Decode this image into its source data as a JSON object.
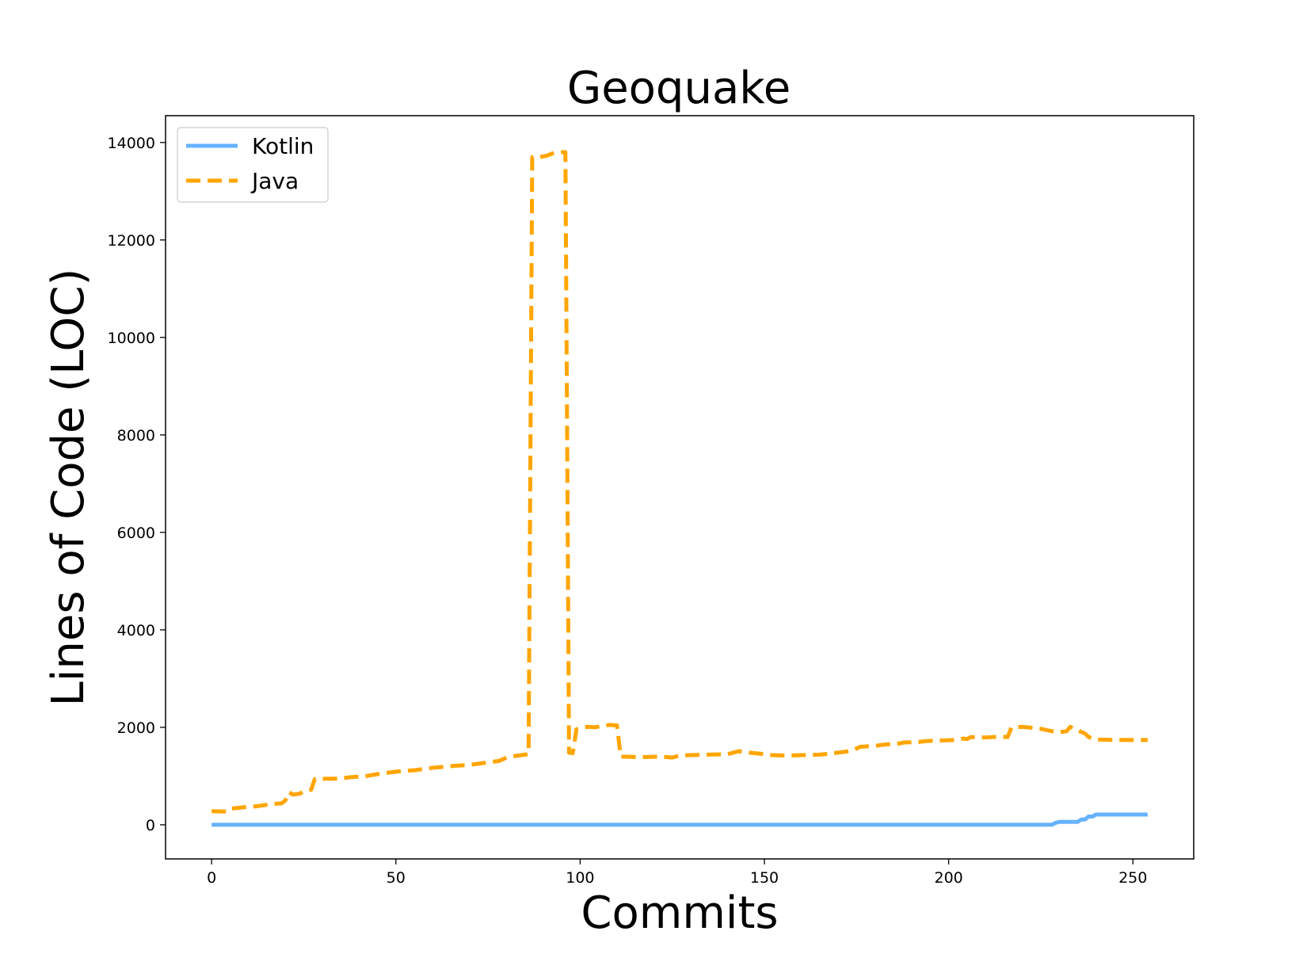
{
  "chart_data": {
    "type": "line",
    "title": "Geoquake",
    "xlabel": "Commits",
    "ylabel": "Lines of Code (LOC)",
    "xlim": [
      -12.5,
      266.5
    ],
    "ylim": [
      -700,
      14550
    ],
    "xticks": [
      0,
      50,
      100,
      150,
      200,
      250
    ],
    "yticks": [
      0,
      2000,
      4000,
      6000,
      8000,
      10000,
      12000,
      14000
    ],
    "xtick_labels": [
      "0",
      "50",
      "100",
      "150",
      "200",
      "250"
    ],
    "ytick_labels": [
      "0",
      "2000",
      "4000",
      "6000",
      "8000",
      "10000",
      "12000",
      "14000"
    ],
    "grid": false,
    "legend_position": "top-left",
    "series": [
      {
        "name": "Kotlin",
        "color": "#66b2ff",
        "style": "solid",
        "points": [
          [
            0,
            0
          ],
          [
            228,
            0
          ],
          [
            229,
            40
          ],
          [
            230,
            60
          ],
          [
            235,
            60
          ],
          [
            236,
            110
          ],
          [
            237,
            110
          ],
          [
            238,
            170
          ],
          [
            239,
            170
          ],
          [
            240,
            210
          ],
          [
            254,
            210
          ]
        ]
      },
      {
        "name": "Java",
        "color": "#ffa500",
        "style": "dashed",
        "points": [
          [
            0,
            280
          ],
          [
            4,
            270
          ],
          [
            5,
            330
          ],
          [
            10,
            370
          ],
          [
            12,
            380
          ],
          [
            15,
            410
          ],
          [
            17,
            430
          ],
          [
            19,
            440
          ],
          [
            20,
            500
          ],
          [
            21,
            670
          ],
          [
            22,
            620
          ],
          [
            24,
            640
          ],
          [
            25,
            690
          ],
          [
            27,
            720
          ],
          [
            28,
            940
          ],
          [
            35,
            950
          ],
          [
            38,
            980
          ],
          [
            42,
            1000
          ],
          [
            45,
            1040
          ],
          [
            48,
            1070
          ],
          [
            50,
            1090
          ],
          [
            53,
            1110
          ],
          [
            55,
            1120
          ],
          [
            58,
            1150
          ],
          [
            60,
            1170
          ],
          [
            63,
            1190
          ],
          [
            66,
            1210
          ],
          [
            70,
            1230
          ],
          [
            72,
            1250
          ],
          [
            75,
            1280
          ],
          [
            78,
            1310
          ],
          [
            80,
            1380
          ],
          [
            83,
            1420
          ],
          [
            86,
            1450
          ],
          [
            87,
            13700
          ],
          [
            89,
            13700
          ],
          [
            91,
            13730
          ],
          [
            93,
            13790
          ],
          [
            95,
            13800
          ],
          [
            96,
            13800
          ],
          [
            97,
            1480
          ],
          [
            98,
            1470
          ],
          [
            99,
            1960
          ],
          [
            101,
            1990
          ],
          [
            102,
            2010
          ],
          [
            104,
            2000
          ],
          [
            106,
            2030
          ],
          [
            108,
            2050
          ],
          [
            110,
            2040
          ],
          [
            111,
            1400
          ],
          [
            115,
            1390
          ],
          [
            118,
            1390
          ],
          [
            122,
            1400
          ],
          [
            125,
            1380
          ],
          [
            127,
            1420
          ],
          [
            130,
            1430
          ],
          [
            135,
            1440
          ],
          [
            140,
            1450
          ],
          [
            143,
            1510
          ],
          [
            146,
            1480
          ],
          [
            150,
            1450
          ],
          [
            152,
            1430
          ],
          [
            156,
            1420
          ],
          [
            160,
            1430
          ],
          [
            165,
            1440
          ],
          [
            168,
            1460
          ],
          [
            172,
            1500
          ],
          [
            174,
            1530
          ],
          [
            176,
            1600
          ],
          [
            180,
            1620
          ],
          [
            183,
            1650
          ],
          [
            186,
            1660
          ],
          [
            188,
            1690
          ],
          [
            192,
            1700
          ],
          [
            194,
            1720
          ],
          [
            198,
            1730
          ],
          [
            202,
            1740
          ],
          [
            204,
            1770
          ],
          [
            205,
            1760
          ],
          [
            206,
            1800
          ],
          [
            210,
            1790
          ],
          [
            214,
            1810
          ],
          [
            216,
            1800
          ],
          [
            217,
            1990
          ],
          [
            220,
            2010
          ],
          [
            225,
            1970
          ],
          [
            228,
            1920
          ],
          [
            230,
            1900
          ],
          [
            232,
            1920
          ],
          [
            233,
            2010
          ],
          [
            235,
            1940
          ],
          [
            237,
            1870
          ],
          [
            238,
            1800
          ],
          [
            240,
            1750
          ],
          [
            245,
            1740
          ],
          [
            250,
            1740
          ],
          [
            254,
            1740
          ]
        ]
      }
    ]
  }
}
